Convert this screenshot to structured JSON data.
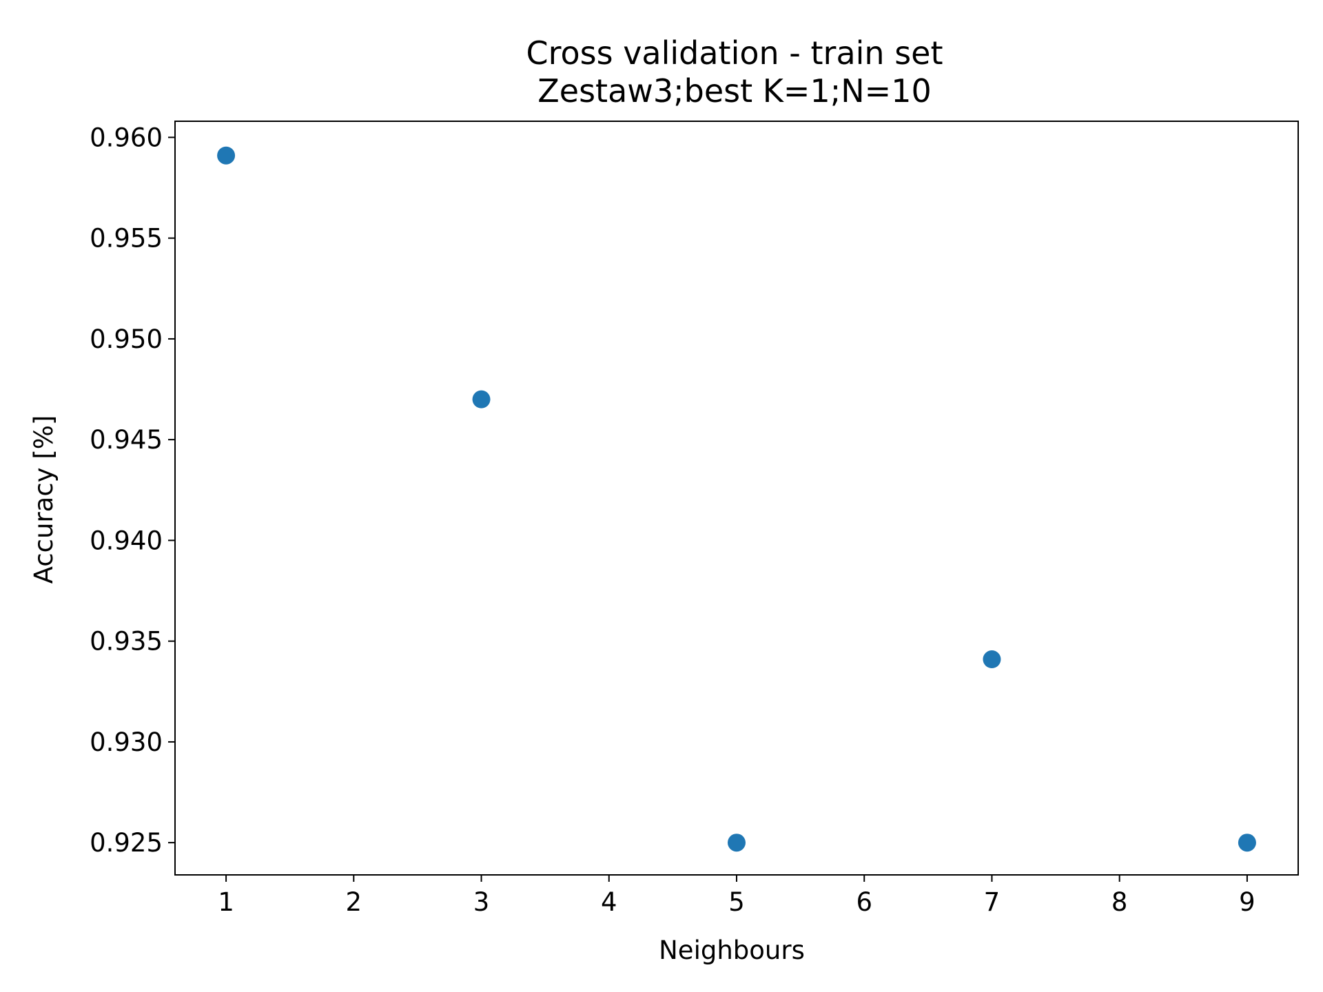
{
  "chart_data": {
    "type": "scatter",
    "title": "Cross validation - train set",
    "subtitle": "Zestaw3;best K=1;N=10",
    "xlabel": "Neighbours",
    "ylabel": "Accuracy [%]",
    "x": [
      1,
      3,
      5,
      7,
      9
    ],
    "y": [
      0.9591,
      0.947,
      0.925,
      0.9341,
      0.925
    ],
    "xlim": [
      0.6,
      9.4
    ],
    "ylim": [
      0.9234,
      0.9608
    ],
    "xticks": [
      1,
      2,
      3,
      4,
      5,
      6,
      7,
      8,
      9
    ],
    "xtick_labels": [
      "1",
      "2",
      "3",
      "4",
      "5",
      "6",
      "7",
      "8",
      "9"
    ],
    "yticks": [
      0.925,
      0.93,
      0.935,
      0.94,
      0.945,
      0.95,
      0.955,
      0.96
    ],
    "ytick_labels": [
      "0.925",
      "0.930",
      "0.935",
      "0.940",
      "0.945",
      "0.950",
      "0.955",
      "0.960"
    ],
    "marker_color": "#1f77b4",
    "grid": false,
    "legend": false
  }
}
